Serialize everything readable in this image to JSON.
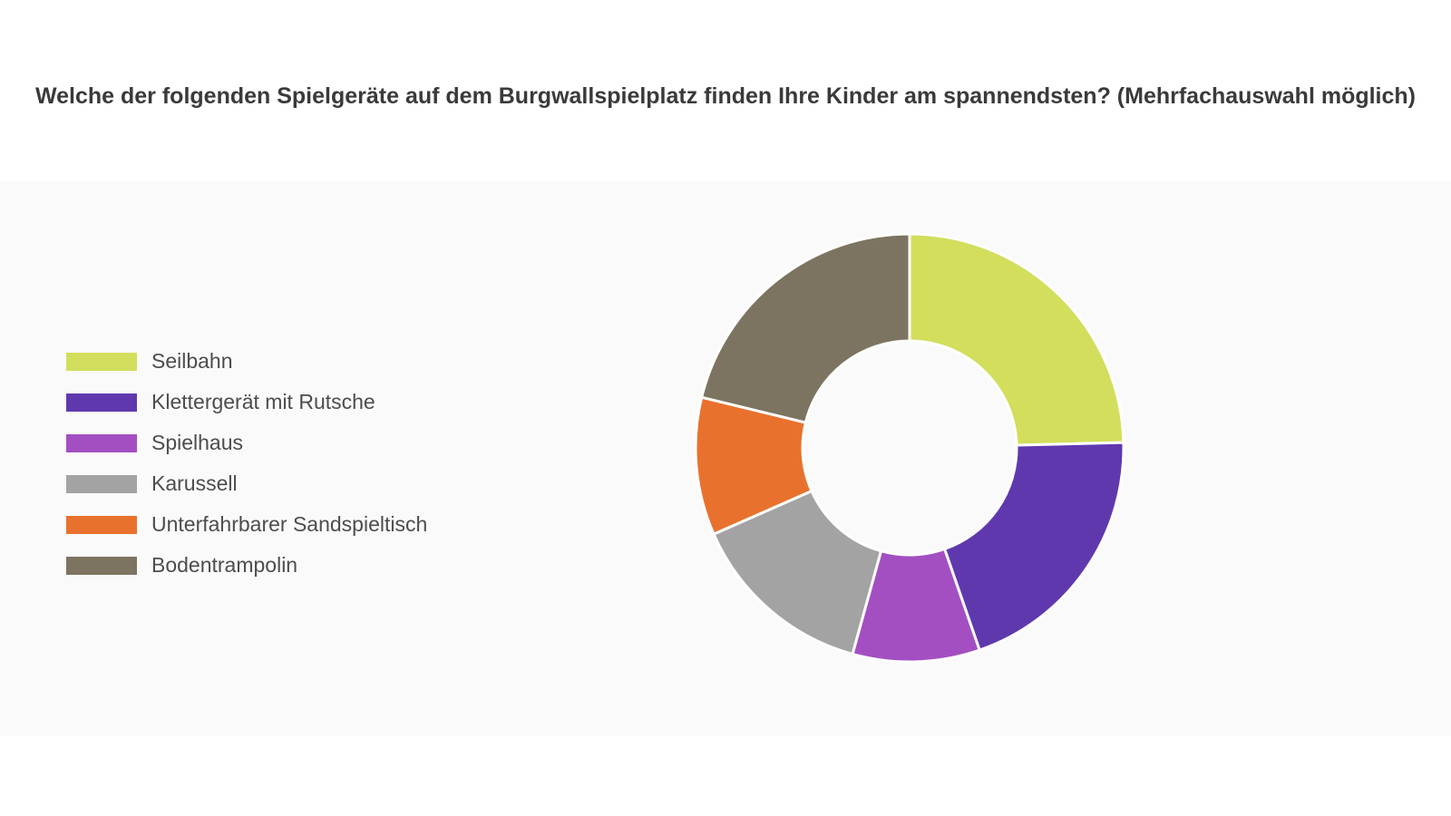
{
  "chart_data": {
    "type": "pie",
    "title": "Welche der folgenden Spielgeräte auf dem Burgwallspielplatz finden Ihre Kinder am spannendsten? (Mehrfachauswahl möglich)",
    "donut": true,
    "legend_position": "left",
    "categories": [
      "Seilbahn",
      "Klettergerät mit Rutsche",
      "Spielhaus",
      "Karussell",
      "Unterfahrbarer Sandspieltisch",
      "Bodentrampolin"
    ],
    "values": [
      24.6,
      20.1,
      9.6,
      14.1,
      10.4,
      21.2
    ],
    "colors": [
      "#d2de5c",
      "#6038ae",
      "#a34fc1",
      "#a3a3a3",
      "#e8722d",
      "#7c7460"
    ]
  }
}
